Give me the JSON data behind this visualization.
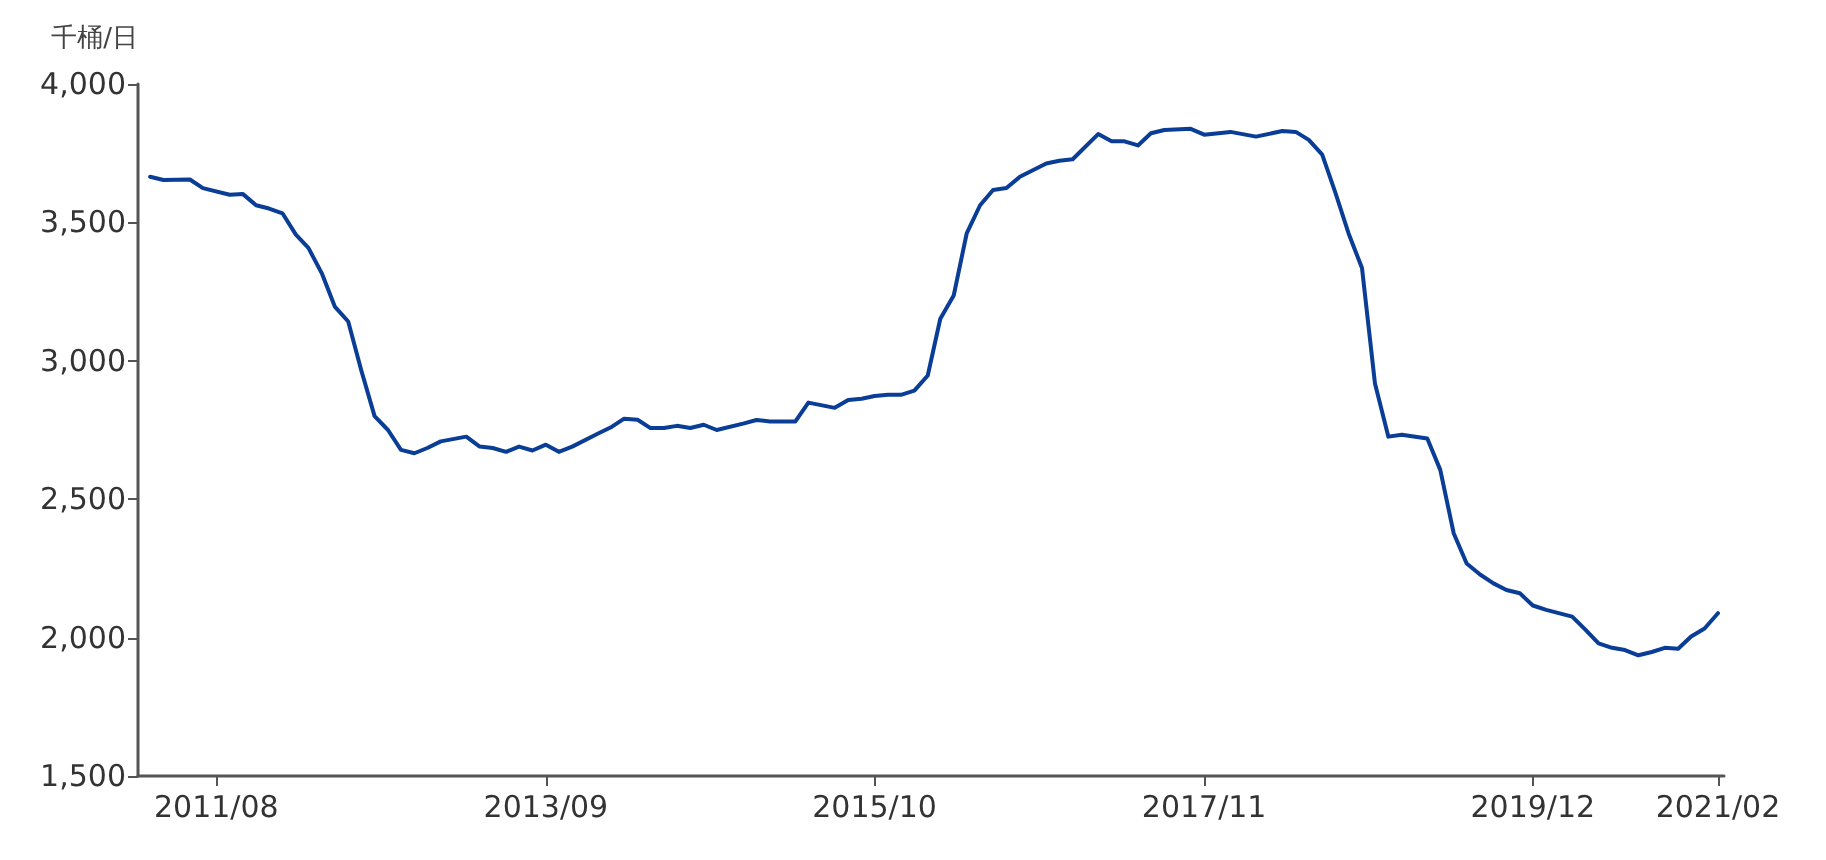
{
  "chart_data": {
    "type": "line",
    "ylabel": "千桶/日",
    "color": "#0a3d96",
    "grid": false,
    "marker": "none",
    "line_style": "solid",
    "x": [
      "2011-03",
      "2011-04",
      "2011-06",
      "2011-07",
      "2011-09",
      "2011-10",
      "2011-11",
      "2011-12",
      "2012-01",
      "2012-02",
      "2012-03",
      "2012-04",
      "2012-05",
      "2012-06",
      "2012-07",
      "2012-08",
      "2012-09",
      "2012-10",
      "2012-11",
      "2012-12",
      "2013-01",
      "2013-03",
      "2013-04",
      "2013-05",
      "2013-06",
      "2013-07",
      "2013-08",
      "2013-09",
      "2013-10",
      "2013-11",
      "2014-01",
      "2014-02",
      "2014-03",
      "2014-04",
      "2014-05",
      "2014-06",
      "2014-07",
      "2014-08",
      "2014-09",
      "2014-10",
      "2014-12",
      "2015-01",
      "2015-02",
      "2015-04",
      "2015-05",
      "2015-07",
      "2015-08",
      "2015-09",
      "2015-10",
      "2015-11",
      "2015-12",
      "2016-01",
      "2016-02",
      "2016-03",
      "2016-04",
      "2016-05",
      "2016-06",
      "2016-07",
      "2016-08",
      "2016-09",
      "2016-11",
      "2016-12",
      "2017-01",
      "2017-03",
      "2017-04",
      "2017-05",
      "2017-06",
      "2017-07",
      "2017-08",
      "2017-10",
      "2017-11",
      "2018-01",
      "2018-03",
      "2018-05",
      "2018-06",
      "2018-07",
      "2018-08",
      "2018-09",
      "2018-10",
      "2018-11",
      "2018-12",
      "2019-01",
      "2019-02",
      "2019-04",
      "2019-05",
      "2019-06",
      "2019-07",
      "2019-08",
      "2019-09",
      "2019-10",
      "2019-11",
      "2019-12",
      "2020-01",
      "2020-03",
      "2020-04",
      "2020-05",
      "2020-06",
      "2020-07",
      "2020-08",
      "2020-09",
      "2020-10",
      "2020-11",
      "2020-12",
      "2021-01",
      "2021-02"
    ],
    "values": [
      3665,
      3653,
      3655,
      3624,
      3600,
      3603,
      3562,
      3550,
      3533,
      3456,
      3408,
      3316,
      3196,
      3142,
      2967,
      2800,
      2750,
      2678,
      2666,
      2685,
      2709,
      2726,
      2690,
      2685,
      2671,
      2690,
      2676,
      2697,
      2671,
      2690,
      2738,
      2762,
      2791,
      2787,
      2757,
      2757,
      2765,
      2757,
      2769,
      2750,
      2773,
      2786,
      2781,
      2781,
      2849,
      2830,
      2858,
      2863,
      2873,
      2877,
      2877,
      2892,
      2947,
      3152,
      3236,
      3460,
      3562,
      3617,
      3624,
      3665,
      3713,
      3723,
      3728,
      3819,
      3793,
      3793,
      3778,
      3822,
      3834,
      3838,
      3817,
      3827,
      3810,
      3830,
      3827,
      3798,
      3745,
      3605,
      3460,
      3335,
      2918,
      2726,
      2733,
      2719,
      2606,
      2377,
      2268,
      2228,
      2196,
      2172,
      2160,
      2116,
      2100,
      2076,
      2028,
      1979,
      1963,
      1955,
      1936,
      1948,
      1963,
      1960,
      2004,
      2033,
      2088
    ],
    "xlim": [
      "2011-02",
      "2021-02-15"
    ],
    "xticks": [
      {
        "value": "2011-08",
        "label": "2011/08"
      },
      {
        "value": "2013-09",
        "label": "2013/09"
      },
      {
        "value": "2015-10",
        "label": "2015/10"
      },
      {
        "value": "2017-11",
        "label": "2017/11"
      },
      {
        "value": "2019-12",
        "label": "2019/12"
      },
      {
        "value": "2021-02",
        "label": "2021/02"
      }
    ],
    "ylim": [
      1500,
      4000
    ],
    "yticks": [
      {
        "value": 1500,
        "label": "1,500"
      },
      {
        "value": 2000,
        "label": "2,000"
      },
      {
        "value": 2500,
        "label": "2,500"
      },
      {
        "value": 3000,
        "label": "3,000"
      },
      {
        "value": 3500,
        "label": "3,500"
      },
      {
        "value": 4000,
        "label": "4,000"
      }
    ]
  }
}
